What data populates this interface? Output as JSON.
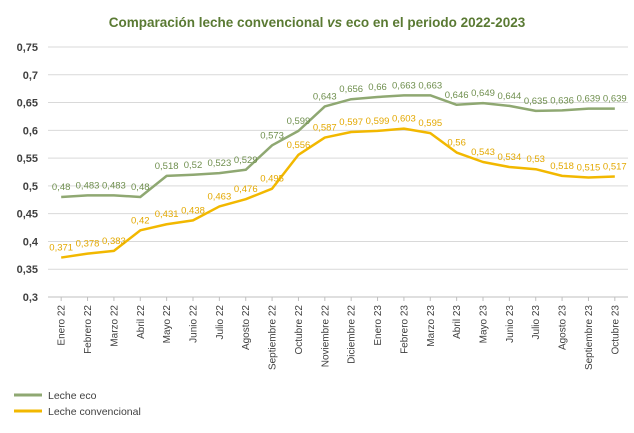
{
  "chart_data": {
    "type": "line",
    "title_parts": [
      "Comparación leche convencional ",
      "vs",
      " eco en el periodo 2022-2023"
    ],
    "xlabel": "",
    "ylabel": "",
    "ylim": [
      0.3,
      0.75
    ],
    "yticks": [
      "0,3",
      "0,35",
      "0,4",
      "0,45",
      "0,5",
      "0,55",
      "0,6",
      "0,65",
      "0,7",
      "0,75"
    ],
    "grid": true,
    "legend_position": "bottom-left",
    "categories": [
      "Enero 22",
      "Febrero 22",
      "Marzo 22",
      "Abril 22",
      "Mayo 22",
      "Junio 22",
      "Julio 22",
      "Agosto 22",
      "Septiembre 22",
      "Octubre 22",
      "Noviembre 22",
      "Diciembre 22",
      "Enero 23",
      "Febrero 23",
      "Marzo 23",
      "Abril 23",
      "Mayo 23",
      "Junio 23",
      "Julio 23",
      "Agosto 23",
      "Septiembre 23",
      "Octubre 23"
    ],
    "series": [
      {
        "name": "Leche eco",
        "color": "#8fa872",
        "label_color": "#6f8f4e",
        "values": [
          0.48,
          0.483,
          0.483,
          0.48,
          0.518,
          0.52,
          0.523,
          0.529,
          0.573,
          0.599,
          0.643,
          0.656,
          0.66,
          0.663,
          0.663,
          0.646,
          0.649,
          0.644,
          0.635,
          0.636,
          0.639,
          0.639
        ],
        "labels": [
          "0,48",
          "0,483",
          "0,483",
          "0,48",
          "0,518",
          "0,52",
          "0,523",
          "0,529",
          "0,573",
          "0,599",
          "0,643",
          "0,656",
          "0,66",
          "0,663",
          "0,663",
          "0,646",
          "0,649",
          "0,644",
          "0,635",
          "0,636",
          "0,639",
          "0,639"
        ]
      },
      {
        "name": "Leche convencional",
        "color": "#f2b800",
        "label_color": "#e3a800",
        "values": [
          0.371,
          0.378,
          0.383,
          0.42,
          0.431,
          0.438,
          0.463,
          0.476,
          0.495,
          0.556,
          0.587,
          0.597,
          0.599,
          0.603,
          0.595,
          0.56,
          0.543,
          0.534,
          0.53,
          0.518,
          0.515,
          0.517
        ],
        "labels": [
          "0,371",
          "0,378",
          "0,383",
          "0,42",
          "0,431",
          "0,438",
          "0,463",
          "0,476",
          "0,495",
          "0,556",
          "0,587",
          "0,597",
          "0,599",
          "0,603",
          "0,595",
          "0,56",
          "0,543",
          "0,534",
          "0,53",
          "0,518",
          "0,515",
          "0,517"
        ]
      }
    ]
  }
}
